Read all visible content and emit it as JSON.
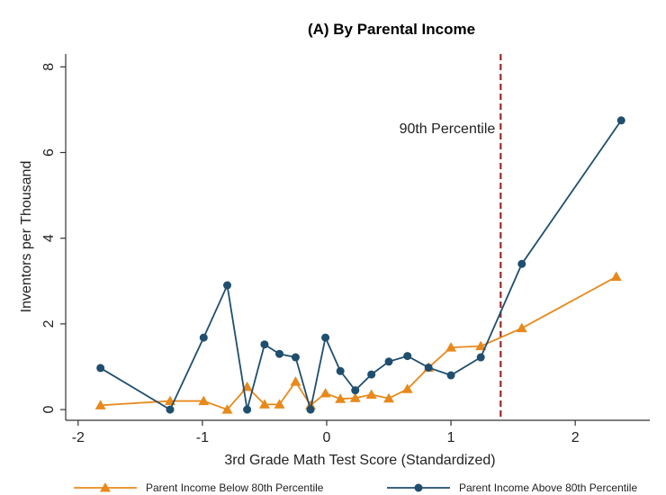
{
  "chart_data": {
    "type": "line",
    "title": "(A) By Parental Income",
    "xlabel": "3rd Grade Math Test Score (Standardized)",
    "ylabel": "Inventors per Thousand",
    "xlim": [
      -2.1,
      2.6
    ],
    "ylim": [
      -0.25,
      8.3
    ],
    "xticks": [
      -2,
      -1,
      0,
      1,
      2
    ],
    "yticks": [
      0,
      2,
      4,
      6,
      8
    ],
    "grid": false,
    "annotations": [
      {
        "type": "vline",
        "x": 1.4,
        "label": "90th Percentile",
        "color": "#9b2a2a",
        "style": "dashed"
      }
    ],
    "legend_position": "bottom",
    "series": [
      {
        "name": "Parent Income Below 80th Percentile",
        "color": "#e8891c",
        "marker": "triangle",
        "x": [
          -1.82,
          -1.26,
          -0.99,
          -0.8,
          -0.64,
          -0.5,
          -0.38,
          -0.25,
          -0.13,
          -0.01,
          0.11,
          0.23,
          0.36,
          0.5,
          0.65,
          0.82,
          1.0,
          1.24,
          1.57,
          2.33
        ],
        "y": [
          0.1,
          0.2,
          0.2,
          0.0,
          0.53,
          0.12,
          0.12,
          0.65,
          0.1,
          0.38,
          0.25,
          0.27,
          0.35,
          0.26,
          0.48,
          0.98,
          1.45,
          1.48,
          1.9,
          3.1
        ]
      },
      {
        "name": "Parent Income Above 80th Percentile",
        "color": "#1f4e6e",
        "marker": "circle",
        "x": [
          -1.82,
          -1.26,
          -0.99,
          -0.8,
          -0.64,
          -0.5,
          -0.38,
          -0.25,
          -0.13,
          -0.01,
          0.11,
          0.23,
          0.36,
          0.5,
          0.65,
          0.82,
          1.0,
          1.24,
          1.57,
          2.37
        ],
        "y": [
          0.97,
          0.0,
          1.68,
          2.9,
          0.0,
          1.52,
          1.3,
          1.22,
          0.0,
          1.68,
          0.9,
          0.45,
          0.82,
          1.12,
          1.25,
          0.98,
          0.8,
          1.22,
          3.4,
          6.75
        ]
      }
    ]
  }
}
